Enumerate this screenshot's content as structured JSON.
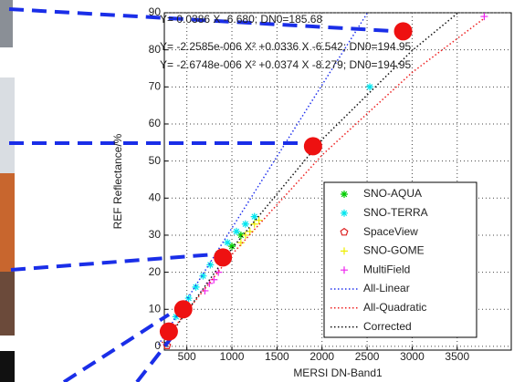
{
  "chart_data": {
    "type": "scatter",
    "title_lines": [
      "Y= 0.0386 X -6.680; DN0=185.68",
      "Y= -2.2585e-006 X² +0.0336 X -6.542; DN0=194.95",
      "Y= -2.6748e-006 X² +0.0374 X -8.279; DN0=194.95"
    ],
    "x_label": "MERSI DN-Band1",
    "y_label": "REF Reflectance/%",
    "xlim": [
      250,
      4100
    ],
    "ylim": [
      -1,
      90
    ],
    "xticks": [
      500,
      1000,
      1500,
      2000,
      2500,
      3000,
      3500
    ],
    "yticks": [
      0,
      10,
      20,
      30,
      40,
      50,
      60,
      70,
      80,
      90
    ],
    "grid": true,
    "series": [
      {
        "name": "SNO-AQUA",
        "kind": "marker",
        "marker": "star",
        "color": "#00cc00",
        "x": [
          900,
          1000,
          1100
        ],
        "values": [
          24,
          27,
          30
        ]
      },
      {
        "name": "SNO-TERRA",
        "kind": "marker",
        "marker": "star",
        "color": "#00e5ee",
        "x": [
          380,
          450,
          520,
          600,
          680,
          760,
          850,
          950,
          1050,
          1150,
          1250,
          2530
        ],
        "values": [
          8,
          10.5,
          13,
          16,
          19,
          22,
          25,
          28,
          31,
          33,
          35,
          70
        ]
      },
      {
        "name": "SpaceView",
        "kind": "marker",
        "marker": "pent",
        "color": "#dd2222",
        "x": [
          280
        ],
        "values": [
          0.2
        ]
      },
      {
        "name": "SNO-GOME",
        "kind": "marker",
        "marker": "plus",
        "color": "#eeee00",
        "x": [
          1100,
          1150,
          1200,
          1250,
          1300
        ],
        "values": [
          28,
          30,
          31,
          33,
          34
        ]
      },
      {
        "name": "MultiField",
        "kind": "marker",
        "marker": "plus",
        "color": "#ee22ee",
        "x": [
          700,
          750,
          800,
          850,
          3800
        ],
        "values": [
          15,
          17,
          18,
          20,
          89
        ]
      },
      {
        "name": "All-Linear",
        "kind": "line",
        "color": "#2233ee",
        "x": [
          185,
          1000,
          2000,
          2500
        ],
        "values": [
          0.46,
          31.92,
          70.52,
          89.82
        ]
      },
      {
        "name": "All-Quadratic",
        "kind": "line",
        "color": "#ee2222",
        "x": [
          200,
          1000,
          2000,
          3000,
          3800
        ],
        "values": [
          0.18,
          24.8,
          51.6,
          73.9,
          88.5
        ]
      },
      {
        "name": "Corrected",
        "kind": "line",
        "color": "#111111",
        "x": [
          250,
          1000,
          2000,
          3000,
          3500
        ],
        "values": [
          0.9,
          26.4,
          55.8,
          79.8,
          89.8
        ]
      }
    ],
    "highlights": {
      "color": "#ee1111",
      "x": [
        300,
        460,
        900,
        1900,
        2900
      ],
      "values": [
        4,
        10,
        24,
        54,
        85
      ]
    }
  }
}
